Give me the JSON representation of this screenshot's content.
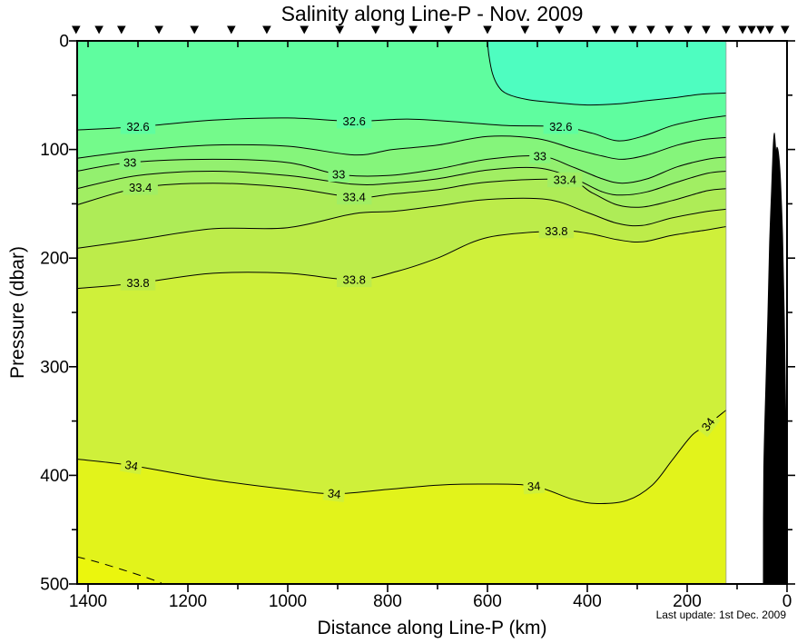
{
  "title": "Salinity along Line-P - Nov. 2009",
  "footnote": "Last update: 1st Dec. 2009",
  "chart_data": {
    "type": "filled-contour-section",
    "title": "Salinity along Line-P - Nov. 2009",
    "variable": "Salinity",
    "x_axis": {
      "label": "Distance along Line-P (km)",
      "unit": "km",
      "reversed": true,
      "range_km": [
        1422,
        0
      ],
      "major_ticks": [
        1400,
        1200,
        1000,
        800,
        600,
        400,
        200,
        0
      ],
      "tick_labels": [
        "1400",
        "1200",
        "1000",
        "800",
        "600",
        "400",
        "200",
        "0"
      ],
      "minor_ticks": [
        1300,
        1100,
        900,
        700,
        500,
        300,
        100
      ]
    },
    "y_axis": {
      "label": "Pressure (dbar)",
      "unit": "dbar",
      "range_dbar": [
        0,
        500
      ],
      "major_ticks": [
        0,
        100,
        200,
        300,
        400,
        500
      ],
      "tick_labels": [
        "0",
        "100",
        "200",
        "300",
        "400",
        "500"
      ],
      "minor_ticks": [
        50,
        150,
        250,
        350,
        450
      ]
    },
    "data_extent_km": [
      122,
      1422
    ],
    "station_markers_km": [
      1424,
      1378,
      1333,
      1258,
      1187,
      1113,
      1042,
      967,
      896,
      824,
      749,
      678,
      600,
      525,
      456,
      382,
      345,
      309,
      273,
      236,
      198,
      162,
      122,
      89,
      71,
      53,
      35,
      4
    ],
    "bands": [
      {
        "level_max": 32.4,
        "color": "#4efdc0"
      },
      {
        "level_min": 32.4,
        "level_max": 32.6,
        "color": "#5ffd9f"
      },
      {
        "level_min": 32.6,
        "level_max": 32.8,
        "color": "#74fa8b"
      },
      {
        "level_min": 32.8,
        "level_max": 33.0,
        "color": "#85f57b"
      },
      {
        "level_min": 33.0,
        "level_max": 33.2,
        "color": "#93f06f"
      },
      {
        "level_min": 33.2,
        "level_max": 33.4,
        "color": "#a1ee63"
      },
      {
        "level_min": 33.4,
        "level_max": 33.6,
        "color": "#aeec57"
      },
      {
        "level_min": 33.6,
        "level_max": 33.8,
        "color": "#bdec4a"
      },
      {
        "level_min": 33.8,
        "level_max": 34.0,
        "color": "#cff03a"
      },
      {
        "level_min": 34.0,
        "level_max": 34.2,
        "color": "#e2f31b"
      },
      {
        "level_min": 34.2,
        "color": "#ebf60d"
      }
    ],
    "contours": [
      {
        "level": 32.4,
        "dashed": false,
        "surface_outcrop_km": 600,
        "labels": [],
        "points": [
          [
            600,
            0
          ],
          [
            597,
            14
          ],
          [
            590,
            30
          ],
          [
            578,
            42
          ],
          [
            560,
            49
          ],
          [
            520,
            54
          ],
          [
            460,
            57
          ],
          [
            400,
            59
          ],
          [
            340,
            58
          ],
          [
            280,
            55
          ],
          [
            220,
            52
          ],
          [
            170,
            49
          ],
          [
            122,
            48
          ]
        ]
      },
      {
        "level": 32.6,
        "dashed": false,
        "labels": [
          {
            "text": "32.6",
            "km": 1300,
            "dbar": 79,
            "rot": 0,
            "bg": "#5ffd9f"
          },
          {
            "text": "32.6",
            "km": 867,
            "dbar": 74,
            "rot": 0,
            "bg": "#5ffd9f"
          },
          {
            "text": "32.6",
            "km": 453,
            "dbar": 79,
            "rot": 0,
            "bg": "#5ffd9f"
          }
        ],
        "points": [
          [
            1422,
            82
          ],
          [
            1300,
            79
          ],
          [
            1150,
            73
          ],
          [
            1000,
            71
          ],
          [
            867,
            74
          ],
          [
            760,
            72
          ],
          [
            650,
            75
          ],
          [
            560,
            78
          ],
          [
            453,
            79
          ],
          [
            390,
            85
          ],
          [
            340,
            92
          ],
          [
            290,
            88
          ],
          [
            230,
            78
          ],
          [
            170,
            72
          ],
          [
            122,
            69
          ]
        ]
      },
      {
        "level": 32.8,
        "dashed": false,
        "labels": [],
        "points": [
          [
            1422,
            108
          ],
          [
            1300,
            101
          ],
          [
            1150,
            96
          ],
          [
            1000,
            97
          ],
          [
            867,
            105
          ],
          [
            790,
            100
          ],
          [
            700,
            96
          ],
          [
            600,
            88
          ],
          [
            500,
            90
          ],
          [
            430,
            99
          ],
          [
            370,
            106
          ],
          [
            330,
            109
          ],
          [
            280,
            105
          ],
          [
            220,
            96
          ],
          [
            170,
            91
          ],
          [
            122,
            89
          ]
        ]
      },
      {
        "level": 33.0,
        "dashed": false,
        "labels": [
          {
            "text": "33",
            "km": 1316,
            "dbar": 112,
            "rot": 0,
            "bg": "#85f57b"
          },
          {
            "text": "33",
            "km": 898,
            "dbar": 123,
            "rot": 0,
            "bg": "#85f57b"
          },
          {
            "text": "33",
            "km": 495,
            "dbar": 106,
            "rot": 0,
            "bg": "#85f57b"
          }
        ],
        "points": [
          [
            1422,
            120
          ],
          [
            1316,
            112
          ],
          [
            1150,
            109
          ],
          [
            1000,
            112
          ],
          [
            898,
            123
          ],
          [
            800,
            124
          ],
          [
            700,
            118
          ],
          [
            600,
            109
          ],
          [
            495,
            106
          ],
          [
            430,
            116
          ],
          [
            370,
            127
          ],
          [
            330,
            131
          ],
          [
            280,
            127
          ],
          [
            220,
            116
          ],
          [
            160,
            109
          ],
          [
            122,
            107
          ]
        ]
      },
      {
        "level": 33.2,
        "dashed": false,
        "labels": [],
        "points": [
          [
            1422,
            136
          ],
          [
            1300,
            124
          ],
          [
            1150,
            120
          ],
          [
            1000,
            124
          ],
          [
            867,
            132
          ],
          [
            790,
            131
          ],
          [
            700,
            127
          ],
          [
            600,
            119
          ],
          [
            500,
            117
          ],
          [
            430,
            126
          ],
          [
            370,
            139
          ],
          [
            330,
            142
          ],
          [
            280,
            139
          ],
          [
            220,
            130
          ],
          [
            160,
            122
          ],
          [
            122,
            120
          ]
        ]
      },
      {
        "level": 33.4,
        "dashed": false,
        "labels": [
          {
            "text": "33.4",
            "km": 1295,
            "dbar": 135,
            "rot": 0,
            "bg": "#a1ee63"
          },
          {
            "text": "33.4",
            "km": 867,
            "dbar": 144,
            "rot": 0,
            "bg": "#a1ee63"
          },
          {
            "text": "33.4",
            "km": 445,
            "dbar": 128,
            "rot": 0,
            "bg": "#a1ee63"
          }
        ],
        "points": [
          [
            1422,
            151
          ],
          [
            1295,
            135
          ],
          [
            1150,
            131
          ],
          [
            1000,
            135
          ],
          [
            867,
            144
          ],
          [
            790,
            141
          ],
          [
            700,
            137
          ],
          [
            600,
            130
          ],
          [
            445,
            128
          ],
          [
            390,
            140
          ],
          [
            340,
            151
          ],
          [
            290,
            153
          ],
          [
            230,
            147
          ],
          [
            160,
            138
          ],
          [
            122,
            136
          ]
        ]
      },
      {
        "level": 33.6,
        "dashed": false,
        "labels": [],
        "points": [
          [
            1422,
            191
          ],
          [
            1300,
            183
          ],
          [
            1150,
            173
          ],
          [
            1000,
            172
          ],
          [
            867,
            159
          ],
          [
            790,
            157
          ],
          [
            700,
            152
          ],
          [
            600,
            146
          ],
          [
            480,
            146
          ],
          [
            400,
            158
          ],
          [
            340,
            168
          ],
          [
            290,
            170
          ],
          [
            230,
            163
          ],
          [
            160,
            157
          ],
          [
            122,
            155
          ]
        ]
      },
      {
        "level": 33.8,
        "dashed": false,
        "labels": [
          {
            "text": "33.8",
            "km": 1300,
            "dbar": 223,
            "rot": 0,
            "bg": "#bdec4a"
          },
          {
            "text": "33.8",
            "km": 867,
            "dbar": 220,
            "rot": 0,
            "bg": "#bdec4a"
          },
          {
            "text": "33.8",
            "km": 462,
            "dbar": 175,
            "rot": 0,
            "bg": "#bdec4a"
          }
        ],
        "points": [
          [
            1422,
            228
          ],
          [
            1300,
            223
          ],
          [
            1150,
            214
          ],
          [
            1000,
            214
          ],
          [
            867,
            220
          ],
          [
            780,
            212
          ],
          [
            700,
            200
          ],
          [
            600,
            181
          ],
          [
            462,
            175
          ],
          [
            400,
            177
          ],
          [
            340,
            183
          ],
          [
            290,
            185
          ],
          [
            230,
            179
          ],
          [
            160,
            174
          ],
          [
            122,
            171
          ]
        ]
      },
      {
        "level": 34.0,
        "dashed": false,
        "labels": [
          {
            "text": "34",
            "km": 1313,
            "dbar": 391,
            "rot": 10,
            "bg": "#cff03a"
          },
          {
            "text": "34",
            "km": 907,
            "dbar": 417,
            "rot": 7,
            "bg": "#cff03a"
          },
          {
            "text": "34",
            "km": 507,
            "dbar": 410,
            "rot": -4,
            "bg": "#cff03a"
          },
          {
            "text": "34",
            "km": 158,
            "dbar": 353,
            "rot": -52,
            "bg": "#cff03a"
          }
        ],
        "points": [
          [
            1422,
            385
          ],
          [
            1313,
            391
          ],
          [
            1150,
            404
          ],
          [
            1000,
            413
          ],
          [
            907,
            417
          ],
          [
            800,
            413
          ],
          [
            700,
            409
          ],
          [
            600,
            408
          ],
          [
            507,
            410
          ],
          [
            430,
            422
          ],
          [
            380,
            426
          ],
          [
            320,
            423
          ],
          [
            270,
            409
          ],
          [
            230,
            386
          ],
          [
            190,
            363
          ],
          [
            158,
            353
          ],
          [
            122,
            340
          ]
        ]
      },
      {
        "level": 34.2,
        "dashed": true,
        "labels": [],
        "points": [
          [
            1422,
            475
          ],
          [
            1380,
            480
          ],
          [
            1330,
            487
          ],
          [
            1290,
            493
          ],
          [
            1253,
            499
          ]
        ]
      }
    ],
    "bathymetry_profile_km_dbar": [
      [
        47.3,
        500
      ],
      [
        46.5,
        397
      ],
      [
        42,
        313
      ],
      [
        38,
        247
      ],
      [
        35,
        188
      ],
      [
        31,
        138
      ],
      [
        29,
        113
      ],
      [
        27.5,
        96
      ],
      [
        25.5,
        85
      ],
      [
        23.5,
        95
      ],
      [
        22,
        105
      ],
      [
        20,
        98
      ],
      [
        16.5,
        106
      ],
      [
        13,
        130
      ],
      [
        9,
        180
      ],
      [
        5.5,
        255
      ],
      [
        2,
        364
      ],
      [
        0,
        500
      ]
    ],
    "colors": {
      "contour_line": "#000000",
      "land": "#000000",
      "frame": "#000000",
      "data_edge_line": "#9a9a9a"
    }
  }
}
